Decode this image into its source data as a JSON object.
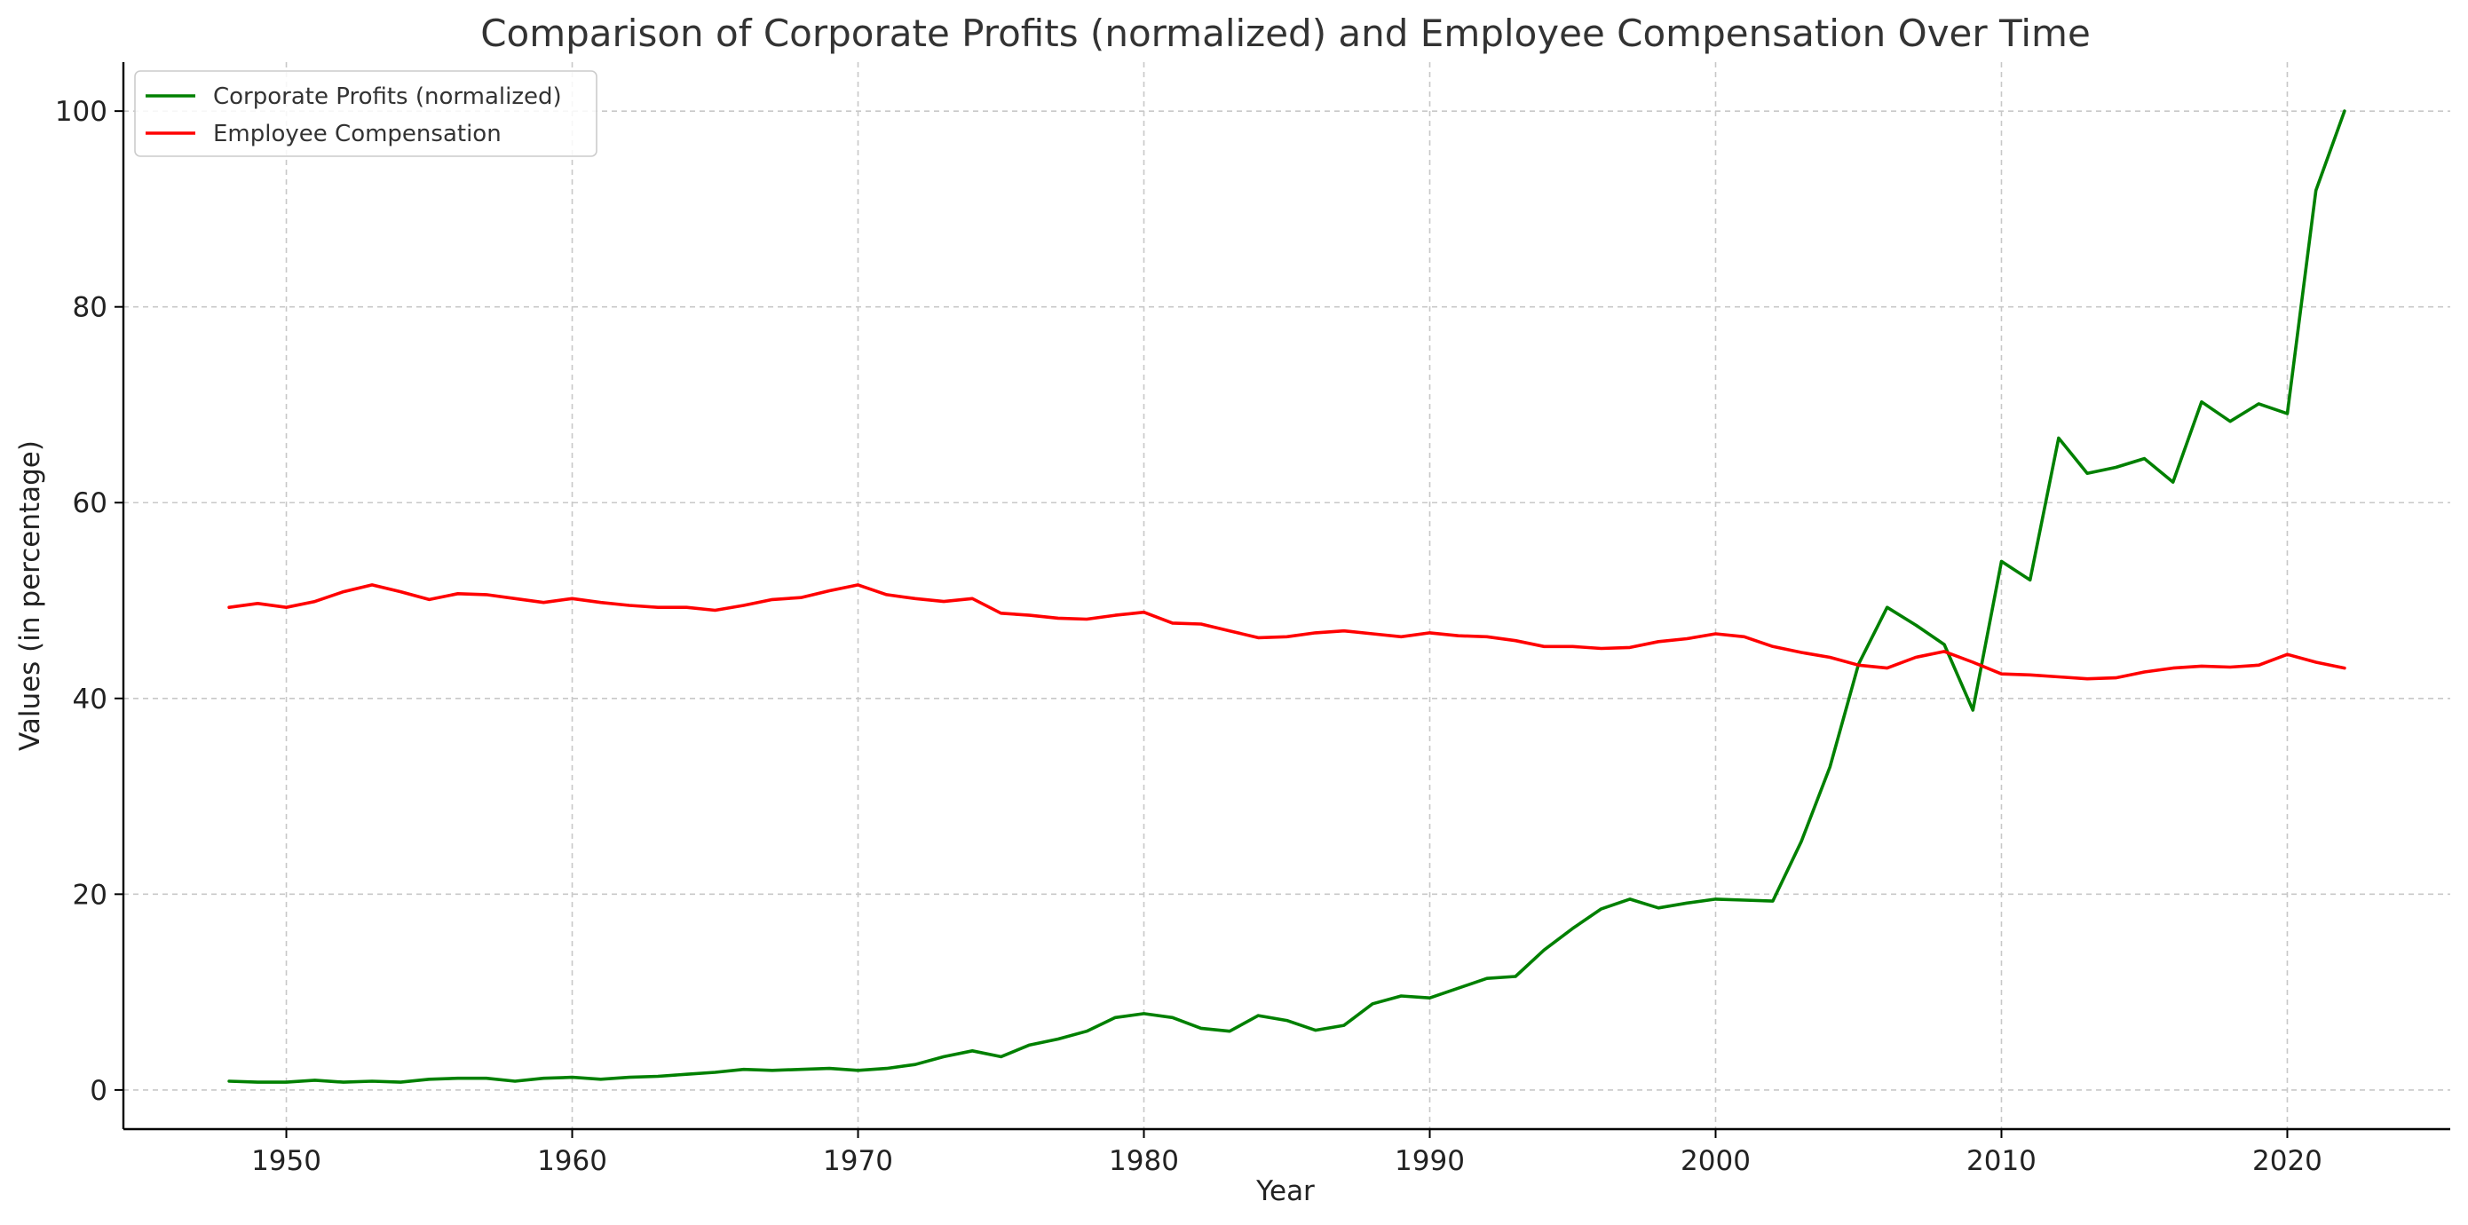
{
  "chart_data": {
    "type": "line",
    "title": "Comparison of Corporate Profits (normalized) and Employee Compensation Over Time",
    "xlabel": "Year",
    "ylabel": "Values (in percentage)",
    "xlim": [
      1944.3,
      2025.7
    ],
    "ylim": [
      -4,
      105
    ],
    "xticks": [
      1950,
      1960,
      1970,
      1980,
      1990,
      2000,
      2010,
      2020
    ],
    "yticks": [
      0,
      20,
      40,
      60,
      80,
      100
    ],
    "grid": true,
    "legend_position": "top-left",
    "x": [
      1948,
      1949,
      1950,
      1951,
      1952,
      1953,
      1954,
      1955,
      1956,
      1957,
      1958,
      1959,
      1960,
      1961,
      1962,
      1963,
      1964,
      1965,
      1966,
      1967,
      1968,
      1969,
      1970,
      1971,
      1972,
      1973,
      1974,
      1975,
      1976,
      1977,
      1978,
      1979,
      1980,
      1981,
      1982,
      1983,
      1984,
      1985,
      1986,
      1987,
      1988,
      1989,
      1990,
      1991,
      1992,
      1993,
      1994,
      1995,
      1996,
      1997,
      1998,
      1999,
      2000,
      2001,
      2002,
      2003,
      2004,
      2005,
      2006,
      2007,
      2008,
      2009,
      2010,
      2011,
      2012,
      2013,
      2014,
      2015,
      2016,
      2017,
      2018,
      2019,
      2020,
      2021,
      2022
    ],
    "series": [
      {
        "name": "Corporate Profits (normalized)",
        "color": "#008000",
        "values": [
          0.9,
          0.8,
          0.8,
          1.0,
          0.8,
          0.9,
          0.8,
          1.1,
          1.2,
          1.2,
          0.9,
          1.2,
          1.3,
          1.1,
          1.3,
          1.4,
          1.6,
          1.8,
          2.1,
          2.0,
          2.1,
          2.2,
          2.0,
          2.2,
          2.6,
          3.4,
          4.0,
          3.4,
          4.6,
          5.2,
          6.0,
          7.4,
          7.8,
          7.4,
          6.3,
          6.0,
          7.6,
          7.1,
          6.1,
          6.6,
          8.8,
          9.6,
          9.4,
          10.4,
          11.4,
          11.6,
          14.3,
          16.5,
          18.5,
          19.5,
          18.6,
          19.1,
          19.5,
          19.4,
          19.3,
          25.4,
          33.0,
          43.5,
          49.3,
          47.5,
          45.5,
          38.8,
          54.0,
          52.1,
          66.6,
          63.0,
          63.6,
          64.5,
          62.1,
          70.3,
          68.3,
          70.1,
          69.1,
          91.9,
          100.0
        ]
      },
      {
        "name": "Employee Compensation",
        "color": "#ff0000",
        "values": [
          49.3,
          49.7,
          49.3,
          49.9,
          50.9,
          51.6,
          50.9,
          50.1,
          50.7,
          50.6,
          50.2,
          49.8,
          50.2,
          49.8,
          49.5,
          49.3,
          49.3,
          49.0,
          49.5,
          50.1,
          50.3,
          51.0,
          51.6,
          50.6,
          50.2,
          49.9,
          50.2,
          48.7,
          48.5,
          48.2,
          48.1,
          48.5,
          48.8,
          47.7,
          47.6,
          46.9,
          46.2,
          46.3,
          46.7,
          46.9,
          46.6,
          46.3,
          46.7,
          46.4,
          46.3,
          45.9,
          45.3,
          45.3,
          45.1,
          45.2,
          45.8,
          46.1,
          46.6,
          46.3,
          45.3,
          44.7,
          44.2,
          43.4,
          43.1,
          44.2,
          44.8,
          43.7,
          42.5,
          42.4,
          42.2,
          42.0,
          42.1,
          42.7,
          43.1,
          43.3,
          43.2,
          43.4,
          44.5,
          43.7,
          43.1
        ]
      }
    ]
  }
}
